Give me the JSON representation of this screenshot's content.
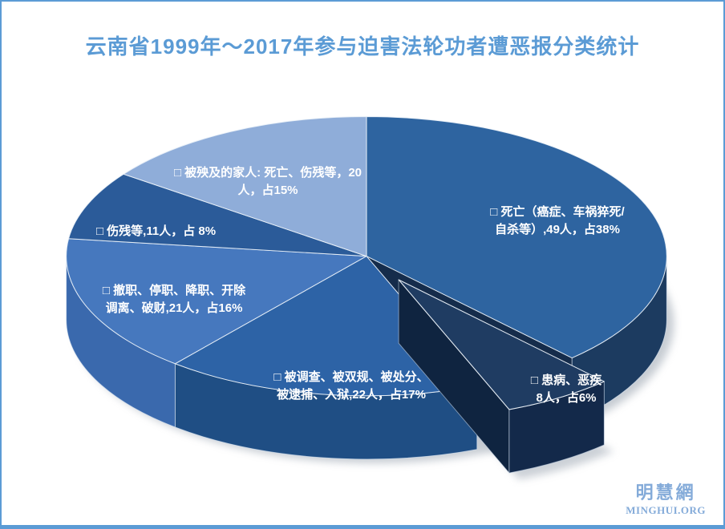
{
  "page": {
    "title": "云南省1999年～2017年参与迫害法轮功者遭恶报分类统计"
  },
  "logo": {
    "cn": "明慧網",
    "en": "MINGHUI.ORG"
  },
  "colors": {
    "accent": "#5B9BD5",
    "logo": "#84ABD9",
    "background": "#FFFFFF",
    "callout_text": "#FFFFFF",
    "notch_wall": "#152C4B",
    "wedge_side": "#0F2440",
    "shadow": "#98A2AE"
  },
  "chart_data": {
    "type": "pie",
    "style": "3d-exploded",
    "title": "云南省1999年～2017年参与迫害法轮功者遭恶报分类统计",
    "unit": "人",
    "start_angle_deg": 0,
    "direction": "clockwise",
    "total_percent": 100,
    "legend_position": "on-slice",
    "slices": [
      {
        "name": "death",
        "label": "死亡（癌症、车祸猝死/自杀等）",
        "count": 49,
        "percent": 38,
        "color": "#2E64A0",
        "wall_color": "#1C3B60",
        "exploded": false,
        "callout": "□ 死亡（癌症、车祸猝死/\n自杀等）,49人，占38%"
      },
      {
        "name": "illness",
        "label": "患病、恶疾",
        "count": 8,
        "percent": 6,
        "color": "#1F3C62",
        "wall_color": "#13294A",
        "exploded": true,
        "callout": "□ 患病、恶疾\n8人，占6%"
      },
      {
        "name": "investigated",
        "label": "被调查、被双规、被处分、被逮捕、入狱",
        "count": 22,
        "percent": 17,
        "color": "#2D63A6",
        "wall_color": "#1F4E84",
        "exploded": false,
        "callout": "□ 被调查、被双规、被处分、\n被逮捕、入狱,22人，占17%"
      },
      {
        "name": "dismissed",
        "label": "撤职、停职、降职、开除调离、破财",
        "count": 21,
        "percent": 16,
        "color": "#4678BE",
        "wall_color": "#3A69AD",
        "exploded": false,
        "callout": "□ 撤职、停职、降职、开除\n调离、破财,21人，占16%"
      },
      {
        "name": "injured",
        "label": "伤残等",
        "count": 11,
        "percent": 8,
        "color": "#2B5B99",
        "wall_color": "#2B5B99",
        "exploded": false,
        "callout": "□ 伤残等,11人，占 8%"
      },
      {
        "name": "family",
        "label": "被殃及的家人: 死亡、伤残等",
        "count": 20,
        "percent": 15,
        "color": "#8FADD9",
        "wall_color": "#8FADD9",
        "exploded": false,
        "callout": "□ 被殃及的家人: 死亡、伤残等，20\n人，占15%"
      }
    ]
  }
}
